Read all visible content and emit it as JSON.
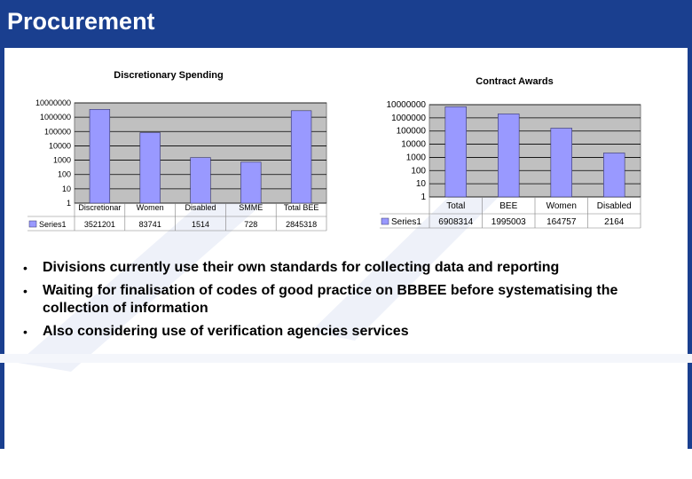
{
  "slide": {
    "title": "Procurement",
    "colors": {
      "banner": "#1a3f8f",
      "bar": "#9999ff",
      "plot_bg": "#c0c0c0"
    },
    "bullets": [
      "Divisions currently use their own standards for collecting data and reporting",
      "Waiting for finalisation of codes of good practice on BBBEE before systematising the collection of information",
      "Also considering use of verification agencies services"
    ],
    "bullet_glyph": "•"
  },
  "chart_data": [
    {
      "type": "bar",
      "title": "Discretionary Spending",
      "y_scale": "log",
      "ylim": [
        1,
        10000000
      ],
      "y_ticks": [
        "10000000",
        "1000000",
        "100000",
        "10000",
        "1000",
        "100",
        "10",
        "1"
      ],
      "categories": [
        "Discretionar",
        "Women",
        "Disabled",
        "SMME",
        "Total BEE"
      ],
      "series": [
        {
          "name": "Series1",
          "values": [
            3521201,
            83741,
            1514,
            728,
            2845318
          ],
          "labels": [
            "3521201",
            "83741",
            "1514",
            "728",
            "2845318"
          ]
        }
      ],
      "grid": true,
      "legend": "bottom-left data table"
    },
    {
      "type": "bar",
      "title": "Contract Awards",
      "y_scale": "log",
      "ylim": [
        1,
        10000000
      ],
      "y_ticks": [
        "10000000",
        "1000000",
        "100000",
        "10000",
        "1000",
        "100",
        "10",
        "1"
      ],
      "categories": [
        "Total",
        "BEE",
        "Women",
        "Disabled"
      ],
      "series": [
        {
          "name": "Series1",
          "values": [
            6908314,
            1995003,
            164757,
            2164
          ],
          "labels": [
            "6908314",
            "1995003",
            "164757",
            "2164"
          ]
        }
      ],
      "grid": true,
      "legend": "bottom-left data table"
    }
  ]
}
